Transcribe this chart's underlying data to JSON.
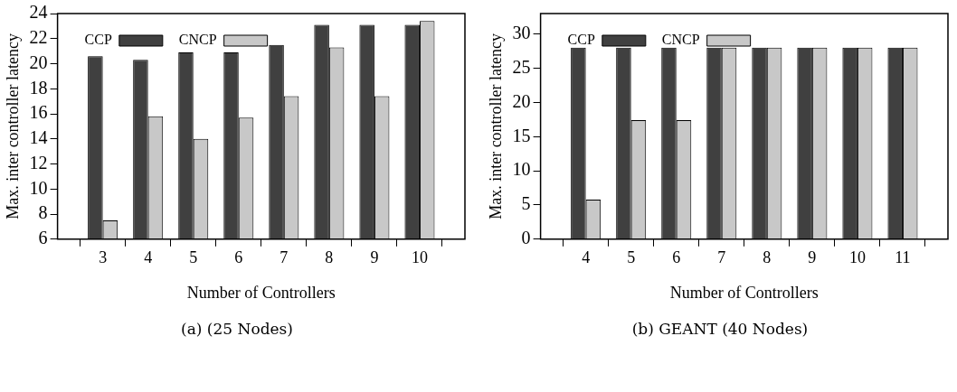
{
  "chart_data": [
    {
      "type": "bar",
      "xlabel": "Number of Controllers",
      "ylabel": "Max. inter controller latency",
      "categories": [
        "3",
        "4",
        "5",
        "6",
        "7",
        "8",
        "9",
        "10"
      ],
      "series": [
        {
          "name": "CCP",
          "color": "#404040",
          "values": [
            20.6,
            20.3,
            20.9,
            20.9,
            21.5,
            23.1,
            23.1,
            23.1
          ]
        },
        {
          "name": "CNCP",
          "color": "#c8c8c8",
          "values": [
            7.5,
            15.8,
            14.0,
            15.7,
            17.4,
            21.3,
            17.4,
            23.4
          ]
        }
      ],
      "ylim": [
        6,
        24
      ],
      "yticks": [
        6,
        8,
        10,
        12,
        14,
        16,
        18,
        20,
        22,
        24
      ],
      "legend": "top left",
      "grid": false,
      "annotations": [
        "(a) (25 Nodes)"
      ]
    },
    {
      "type": "bar",
      "xlabel": "Number of Controllers",
      "ylabel": "Max. inter controller latency",
      "categories": [
        "4",
        "5",
        "6",
        "7",
        "8",
        "9",
        "10",
        "11"
      ],
      "series": [
        {
          "name": "CCP",
          "color": "#404040",
          "values": [
            28,
            28,
            28,
            28,
            28,
            28,
            28,
            28
          ]
        },
        {
          "name": "CNCP",
          "color": "#c8c8c8",
          "values": [
            5.8,
            17.4,
            17.4,
            28,
            28,
            28,
            28,
            28
          ]
        }
      ],
      "ylim": [
        0,
        33
      ],
      "yticks": [
        0,
        5,
        10,
        15,
        20,
        25,
        30
      ],
      "legend": "top left",
      "grid": false,
      "annotations": [
        "(b) GEANT (40 Nodes)"
      ]
    }
  ]
}
